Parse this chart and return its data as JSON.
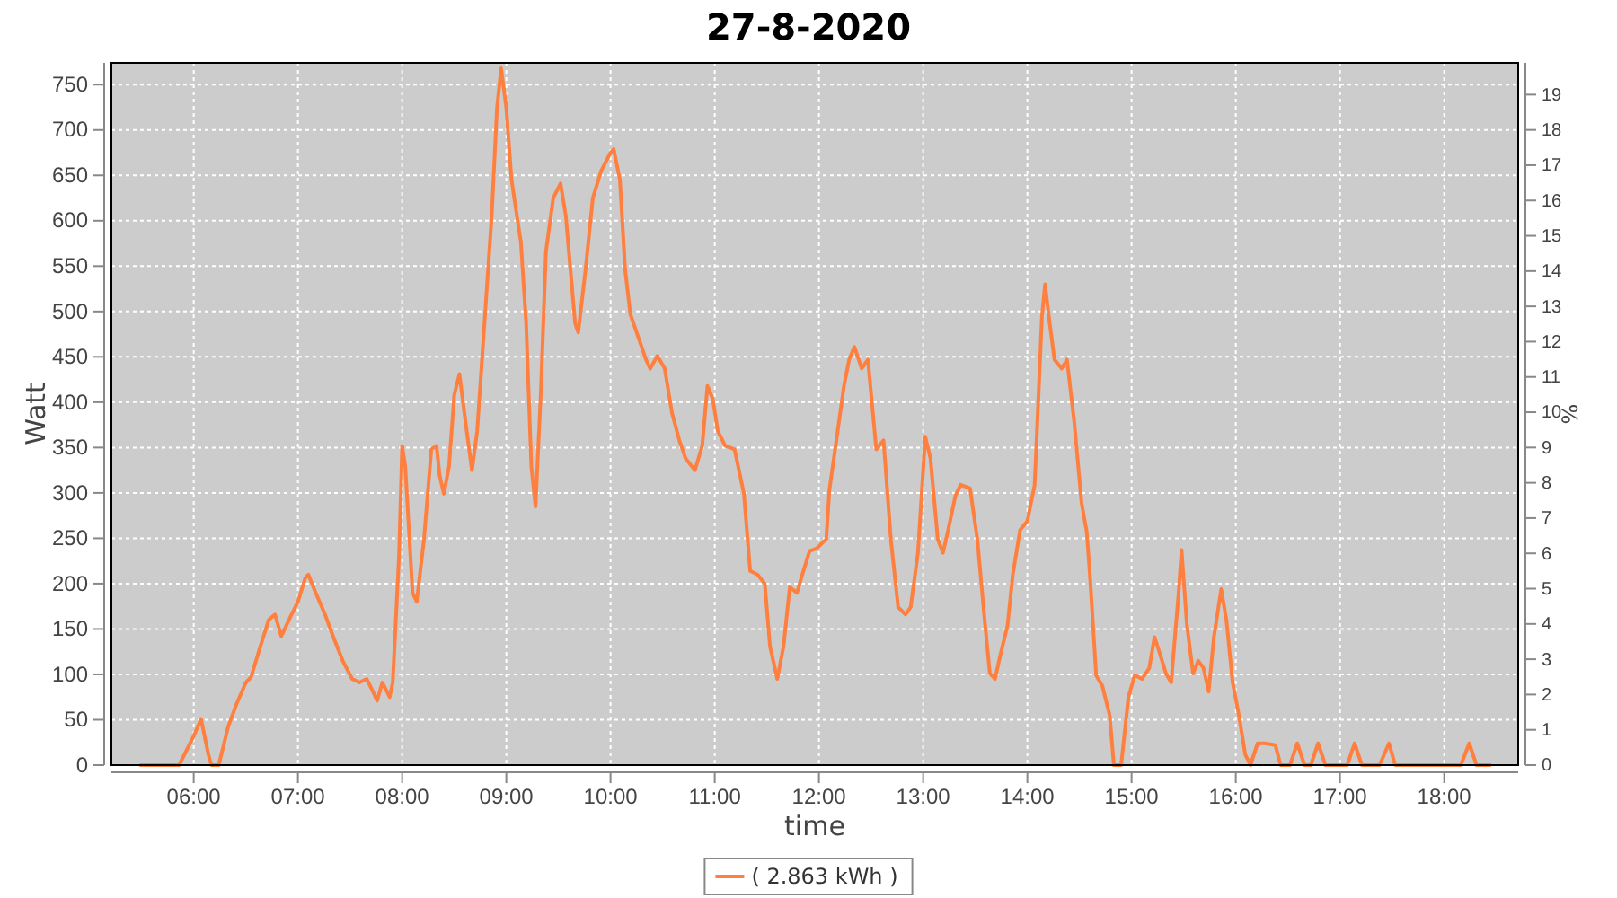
{
  "chart_data": {
    "type": "line",
    "title": "27-8-2020",
    "xlabel": "time",
    "ylabel": "Watt",
    "y2label": "%",
    "xlim": [
      5.21,
      18.71
    ],
    "xticks": [
      {
        "value": 6,
        "label": "06:00"
      },
      {
        "value": 7,
        "label": "07:00"
      },
      {
        "value": 8,
        "label": "08:00"
      },
      {
        "value": 9,
        "label": "09:00"
      },
      {
        "value": 10,
        "label": "10:00"
      },
      {
        "value": 11,
        "label": "11:00"
      },
      {
        "value": 12,
        "label": "12:00"
      },
      {
        "value": 13,
        "label": "13:00"
      },
      {
        "value": 14,
        "label": "14:00"
      },
      {
        "value": 15,
        "label": "15:00"
      },
      {
        "value": 16,
        "label": "16:00"
      },
      {
        "value": 17,
        "label": "17:00"
      },
      {
        "value": 18,
        "label": "18:00"
      }
    ],
    "ylim": [
      0,
      774
    ],
    "yticks": [
      0,
      50,
      100,
      150,
      200,
      250,
      300,
      350,
      400,
      450,
      500,
      550,
      600,
      650,
      700,
      750
    ],
    "y2lim": [
      0,
      19.9
    ],
    "y2ticks": [
      0,
      1,
      2,
      3,
      4,
      5,
      6,
      7,
      8,
      9,
      10,
      11,
      12,
      13,
      14,
      15,
      16,
      17,
      18,
      19
    ],
    "grid": true,
    "legend": "bottom",
    "marker": "none",
    "line_style": "solid",
    "series": [
      {
        "name": "( 2.863 kWh )",
        "color": "#ff7f3f",
        "x": [
          5.48,
          5.86,
          6.0,
          6.07,
          6.14,
          6.17,
          6.24,
          6.33,
          6.41,
          6.5,
          6.55,
          6.64,
          6.72,
          6.78,
          6.84,
          6.93,
          7.0,
          7.07,
          7.1,
          7.17,
          7.26,
          7.34,
          7.43,
          7.52,
          7.59,
          7.66,
          7.72,
          7.76,
          7.81,
          7.88,
          7.91,
          7.97,
          8.0,
          8.03,
          8.1,
          8.14,
          8.21,
          8.28,
          8.33,
          8.36,
          8.4,
          8.45,
          8.5,
          8.55,
          8.62,
          8.67,
          8.72,
          8.79,
          8.86,
          8.91,
          8.95,
          9.0,
          9.05,
          9.14,
          9.19,
          9.24,
          9.28,
          9.33,
          9.38,
          9.45,
          9.52,
          9.57,
          9.66,
          9.69,
          9.76,
          9.83,
          9.91,
          10.0,
          10.03,
          10.09,
          10.14,
          10.19,
          10.28,
          10.34,
          10.38,
          10.45,
          10.52,
          10.59,
          10.66,
          10.72,
          10.81,
          10.88,
          10.93,
          10.98,
          11.03,
          11.1,
          11.19,
          11.28,
          11.34,
          11.41,
          11.48,
          11.53,
          11.6,
          11.66,
          11.72,
          11.79,
          11.84,
          11.91,
          11.98,
          12.07,
          12.1,
          12.16,
          12.24,
          12.29,
          12.34,
          12.41,
          12.47,
          12.55,
          12.62,
          12.69,
          12.76,
          12.83,
          12.88,
          12.95,
          13.02,
          13.07,
          13.14,
          13.19,
          13.24,
          13.31,
          13.36,
          13.45,
          13.52,
          13.59,
          13.64,
          13.69,
          13.74,
          13.81,
          13.86,
          13.93,
          14.0,
          14.07,
          14.14,
          14.17,
          14.21,
          14.26,
          14.33,
          14.38,
          14.45,
          14.52,
          14.57,
          14.6,
          14.66,
          14.72,
          14.79,
          14.83,
          14.9,
          14.97,
          15.03,
          15.1,
          15.17,
          15.22,
          15.26,
          15.33,
          15.38,
          15.45,
          15.48,
          15.53,
          15.59,
          15.64,
          15.69,
          15.74,
          15.79,
          15.86,
          15.91,
          15.97,
          16.03,
          16.09,
          16.14,
          16.21,
          16.28,
          16.38,
          16.43,
          16.52,
          16.59,
          16.66,
          16.72,
          16.79,
          16.86,
          17.07,
          17.14,
          17.21,
          17.38,
          17.47,
          17.53,
          17.76,
          18.16,
          18.24,
          18.31,
          18.45
        ],
        "values": [
          0,
          0,
          32,
          51,
          12,
          0,
          0,
          42,
          67,
          91,
          97,
          131,
          160,
          166,
          142,
          164,
          180,
          206,
          210,
          190,
          166,
          141,
          115,
          95,
          91,
          95,
          81,
          71,
          91,
          75,
          91,
          230,
          352,
          329,
          190,
          180,
          249,
          348,
          352,
          319,
          299,
          329,
          408,
          431,
          368,
          325,
          368,
          487,
          606,
          724,
          768,
          724,
          645,
          576,
          487,
          329,
          285,
          408,
          566,
          625,
          641,
          606,
          487,
          477,
          546,
          625,
          655,
          675,
          679,
          645,
          546,
          497,
          467,
          447,
          437,
          451,
          437,
          388,
          358,
          338,
          325,
          352,
          418,
          404,
          368,
          352,
          348,
          299,
          214,
          210,
          200,
          131,
          95,
          131,
          196,
          190,
          210,
          236,
          239,
          249,
          303,
          352,
          418,
          447,
          461,
          437,
          447,
          348,
          358,
          249,
          174,
          166,
          174,
          234,
          362,
          338,
          249,
          234,
          259,
          297,
          309,
          305,
          249,
          160,
          101,
          95,
          121,
          154,
          210,
          259,
          269,
          309,
          495,
          530,
          491,
          447,
          437,
          447,
          378,
          289,
          257,
          210,
          99,
          87,
          55,
          0,
          0,
          75,
          99,
          95,
          107,
          141,
          127,
          101,
          91,
          188,
          237,
          156,
          101,
          115,
          107,
          81,
          141,
          194,
          160,
          91,
          55,
          12,
          0,
          24,
          24,
          22,
          0,
          0,
          24,
          0,
          0,
          24,
          0,
          0,
          24,
          0,
          0,
          24,
          0,
          0,
          0,
          24,
          0,
          0
        ]
      }
    ]
  }
}
